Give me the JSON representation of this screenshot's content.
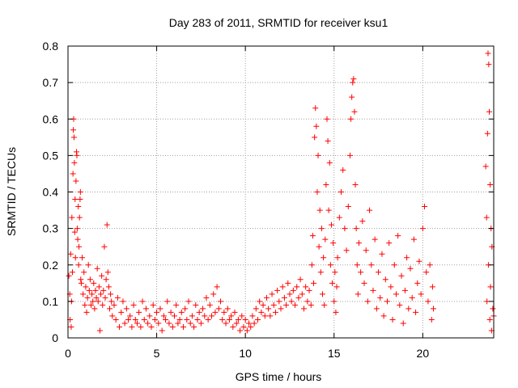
{
  "chart_data": {
    "type": "scatter",
    "title": "Day 283 of 2011, SRMTID for receiver ksu1",
    "xlabel": "GPS time / hours",
    "ylabel": "SRMTID / TECUs",
    "xlim": [
      0,
      24
    ],
    "ylim": [
      0,
      0.8
    ],
    "xticks": [
      0,
      5,
      10,
      15,
      20
    ],
    "yticks": [
      0,
      0.1,
      0.2,
      0.3,
      0.4,
      0.5,
      0.6,
      0.7,
      0.8
    ],
    "grid": true,
    "marker": "plus",
    "color": "#ff0000",
    "series": [
      {
        "name": "SRMTID",
        "points": [
          [
            0.05,
            0.17
          ],
          [
            0.1,
            0.12
          ],
          [
            0.12,
            0.05
          ],
          [
            0.15,
            0.23
          ],
          [
            0.18,
            0.03
          ],
          [
            0.2,
            0.1
          ],
          [
            0.22,
            0.33
          ],
          [
            0.25,
            0.18
          ],
          [
            0.28,
            0.45
          ],
          [
            0.3,
            0.57
          ],
          [
            0.32,
            0.6
          ],
          [
            0.34,
            0.55
          ],
          [
            0.36,
            0.48
          ],
          [
            0.38,
            0.29
          ],
          [
            0.4,
            0.38
          ],
          [
            0.42,
            0.22
          ],
          [
            0.45,
            0.43
          ],
          [
            0.48,
            0.51
          ],
          [
            0.5,
            0.5
          ],
          [
            0.52,
            0.3
          ],
          [
            0.55,
            0.27
          ],
          [
            0.58,
            0.36
          ],
          [
            0.6,
            0.2
          ],
          [
            0.62,
            0.25
          ],
          [
            0.65,
            0.33
          ],
          [
            0.68,
            0.38
          ],
          [
            0.7,
            0.4
          ],
          [
            0.72,
            0.16
          ],
          [
            0.75,
            0.15
          ],
          [
            0.8,
            0.22
          ],
          [
            0.85,
            0.12
          ],
          [
            0.9,
            0.18
          ],
          [
            0.95,
            0.09
          ],
          [
            1.0,
            0.14
          ],
          [
            1.05,
            0.07
          ],
          [
            1.1,
            0.11
          ],
          [
            1.15,
            0.2
          ],
          [
            1.2,
            0.13
          ],
          [
            1.25,
            0.16
          ],
          [
            1.3,
            0.09
          ],
          [
            1.35,
            0.12
          ],
          [
            1.4,
            0.1
          ],
          [
            1.45,
            0.15
          ],
          [
            1.5,
            0.08
          ],
          [
            1.55,
            0.13
          ],
          [
            1.6,
            0.11
          ],
          [
            1.65,
            0.19
          ],
          [
            1.7,
            0.1
          ],
          [
            1.75,
            0.14
          ],
          [
            1.8,
            0.02
          ],
          [
            1.85,
            0.12
          ],
          [
            1.9,
            0.17
          ],
          [
            1.95,
            0.09
          ],
          [
            2.0,
            0.13
          ],
          [
            2.05,
            0.25
          ],
          [
            2.1,
            0.11
          ],
          [
            2.15,
            0.16
          ],
          [
            2.2,
            0.31
          ],
          [
            2.25,
            0.18
          ],
          [
            2.3,
            0.14
          ],
          [
            2.35,
            0.08
          ],
          [
            2.4,
            0.12
          ],
          [
            2.45,
            0.1
          ],
          [
            2.5,
            0.06
          ],
          [
            2.6,
            0.09
          ],
          [
            2.7,
            0.05
          ],
          [
            2.8,
            0.11
          ],
          [
            2.9,
            0.03
          ],
          [
            3.0,
            0.07
          ],
          [
            3.1,
            0.1
          ],
          [
            3.2,
            0.04
          ],
          [
            3.3,
            0.08
          ],
          [
            3.4,
            0.05
          ],
          [
            3.5,
            0.06
          ],
          [
            3.6,
            0.03
          ],
          [
            3.7,
            0.09
          ],
          [
            3.8,
            0.05
          ],
          [
            3.9,
            0.04
          ],
          [
            4.0,
            0.07
          ],
          [
            4.1,
            0.03
          ],
          [
            4.2,
            0.1
          ],
          [
            4.3,
            0.05
          ],
          [
            4.4,
            0.08
          ],
          [
            4.5,
            0.04
          ],
          [
            4.6,
            0.06
          ],
          [
            4.7,
            0.03
          ],
          [
            4.8,
            0.09
          ],
          [
            4.9,
            0.05
          ],
          [
            5.0,
            0.07
          ],
          [
            5.1,
            0.04
          ],
          [
            5.2,
            0.08
          ],
          [
            5.3,
            0.02
          ],
          [
            5.4,
            0.06
          ],
          [
            5.5,
            0.05
          ],
          [
            5.6,
            0.1
          ],
          [
            5.7,
            0.04
          ],
          [
            5.8,
            0.07
          ],
          [
            5.9,
            0.03
          ],
          [
            6.0,
            0.06
          ],
          [
            6.1,
            0.09
          ],
          [
            6.2,
            0.04
          ],
          [
            6.3,
            0.05
          ],
          [
            6.4,
            0.07
          ],
          [
            6.5,
            0.03
          ],
          [
            6.6,
            0.08
          ],
          [
            6.7,
            0.05
          ],
          [
            6.8,
            0.1
          ],
          [
            6.9,
            0.04
          ],
          [
            7.0,
            0.06
          ],
          [
            7.1,
            0.03
          ],
          [
            7.2,
            0.09
          ],
          [
            7.3,
            0.05
          ],
          [
            7.4,
            0.07
          ],
          [
            7.5,
            0.04
          ],
          [
            7.6,
            0.08
          ],
          [
            7.7,
            0.06
          ],
          [
            7.8,
            0.11
          ],
          [
            7.9,
            0.05
          ],
          [
            8.0,
            0.09
          ],
          [
            8.1,
            0.06
          ],
          [
            8.2,
            0.12
          ],
          [
            8.3,
            0.07
          ],
          [
            8.4,
            0.14
          ],
          [
            8.5,
            0.08
          ],
          [
            8.6,
            0.1
          ],
          [
            8.7,
            0.05
          ],
          [
            8.8,
            0.07
          ],
          [
            8.9,
            0.04
          ],
          [
            9.0,
            0.08
          ],
          [
            9.1,
            0.05
          ],
          [
            9.2,
            0.06
          ],
          [
            9.3,
            0.03
          ],
          [
            9.4,
            0.07
          ],
          [
            9.5,
            0.04
          ],
          [
            9.6,
            0.05
          ],
          [
            9.7,
            0.02
          ],
          [
            9.8,
            0.06
          ],
          [
            9.9,
            0.03
          ],
          [
            10.0,
            0.05
          ],
          [
            10.1,
            0.02
          ],
          [
            10.2,
            0.04
          ],
          [
            10.3,
            0.03
          ],
          [
            10.4,
            0.06
          ],
          [
            10.5,
            0.04
          ],
          [
            10.6,
            0.08
          ],
          [
            10.7,
            0.05
          ],
          [
            10.8,
            0.1
          ],
          [
            10.9,
            0.07
          ],
          [
            11.0,
            0.09
          ],
          [
            11.1,
            0.06
          ],
          [
            11.2,
            0.11
          ],
          [
            11.3,
            0.08
          ],
          [
            11.4,
            0.06
          ],
          [
            11.5,
            0.12
          ],
          [
            11.6,
            0.09
          ],
          [
            11.7,
            0.07
          ],
          [
            11.8,
            0.13
          ],
          [
            11.9,
            0.1
          ],
          [
            12.0,
            0.08
          ],
          [
            12.1,
            0.14
          ],
          [
            12.2,
            0.11
          ],
          [
            12.3,
            0.09
          ],
          [
            12.4,
            0.15
          ],
          [
            12.5,
            0.12
          ],
          [
            12.6,
            0.1
          ],
          [
            12.7,
            0.13
          ],
          [
            12.8,
            0.09
          ],
          [
            12.9,
            0.14
          ],
          [
            13.0,
            0.11
          ],
          [
            13.1,
            0.16
          ],
          [
            13.2,
            0.12
          ],
          [
            13.3,
            0.08
          ],
          [
            13.4,
            0.14
          ],
          [
            13.5,
            0.1
          ],
          [
            13.6,
            0.13
          ],
          [
            13.7,
            0.09
          ],
          [
            13.75,
            0.2
          ],
          [
            13.8,
            0.28
          ],
          [
            13.85,
            0.15
          ],
          [
            13.9,
            0.55
          ],
          [
            13.95,
            0.63
          ],
          [
            14.0,
            0.58
          ],
          [
            14.05,
            0.4
          ],
          [
            14.1,
            0.5
          ],
          [
            14.15,
            0.25
          ],
          [
            14.2,
            0.35
          ],
          [
            14.25,
            0.18
          ],
          [
            14.3,
            0.3
          ],
          [
            14.35,
            0.12
          ],
          [
            14.4,
            0.22
          ],
          [
            14.45,
            0.09
          ],
          [
            14.5,
            0.27
          ],
          [
            14.55,
            0.42
          ],
          [
            14.6,
            0.6
          ],
          [
            14.65,
            0.54
          ],
          [
            14.7,
            0.35
          ],
          [
            14.75,
            0.48
          ],
          [
            14.8,
            0.2
          ],
          [
            14.85,
            0.31
          ],
          [
            14.9,
            0.15
          ],
          [
            14.95,
            0.26
          ],
          [
            15.0,
            0.1
          ],
          [
            15.05,
            0.18
          ],
          [
            15.1,
            0.07
          ],
          [
            15.15,
            0.14
          ],
          [
            15.2,
            0.22
          ],
          [
            15.3,
            0.33
          ],
          [
            15.4,
            0.4
          ],
          [
            15.5,
            0.46
          ],
          [
            15.6,
            0.3
          ],
          [
            15.7,
            0.24
          ],
          [
            15.8,
            0.36
          ],
          [
            15.9,
            0.5
          ],
          [
            15.95,
            0.6
          ],
          [
            16.0,
            0.66
          ],
          [
            16.05,
            0.7
          ],
          [
            16.1,
            0.71
          ],
          [
            16.15,
            0.62
          ],
          [
            16.2,
            0.42
          ],
          [
            16.25,
            0.3
          ],
          [
            16.3,
            0.2
          ],
          [
            16.35,
            0.12
          ],
          [
            16.4,
            0.26
          ],
          [
            16.5,
            0.18
          ],
          [
            16.6,
            0.32
          ],
          [
            16.7,
            0.15
          ],
          [
            16.8,
            0.24
          ],
          [
            16.9,
            0.1
          ],
          [
            17.0,
            0.35
          ],
          [
            17.1,
            0.2
          ],
          [
            17.2,
            0.13
          ],
          [
            17.3,
            0.27
          ],
          [
            17.4,
            0.08
          ],
          [
            17.5,
            0.18
          ],
          [
            17.6,
            0.11
          ],
          [
            17.7,
            0.23
          ],
          [
            17.8,
            0.06
          ],
          [
            17.9,
            0.16
          ],
          [
            18.0,
            0.1
          ],
          [
            18.1,
            0.26
          ],
          [
            18.2,
            0.14
          ],
          [
            18.3,
            0.05
          ],
          [
            18.4,
            0.2
          ],
          [
            18.5,
            0.12
          ],
          [
            18.6,
            0.28
          ],
          [
            18.7,
            0.09
          ],
          [
            18.8,
            0.17
          ],
          [
            18.9,
            0.04
          ],
          [
            19.0,
            0.13
          ],
          [
            19.1,
            0.22
          ],
          [
            19.2,
            0.08
          ],
          [
            19.3,
            0.19
          ],
          [
            19.4,
            0.11
          ],
          [
            19.5,
            0.27
          ],
          [
            19.6,
            0.07
          ],
          [
            19.7,
            0.15
          ],
          [
            19.8,
            0.21
          ],
          [
            19.9,
            0.12
          ],
          [
            20.0,
            0.3
          ],
          [
            20.1,
            0.36
          ],
          [
            20.2,
            0.18
          ],
          [
            20.3,
            0.1
          ],
          [
            20.4,
            0.2
          ],
          [
            20.5,
            0.05
          ],
          [
            20.55,
            0.14
          ],
          [
            20.6,
            0.08
          ],
          [
            23.55,
            0.47
          ],
          [
            23.6,
            0.33
          ],
          [
            23.62,
            0.1
          ],
          [
            23.65,
            0.56
          ],
          [
            23.68,
            0.78
          ],
          [
            23.7,
            0.2
          ],
          [
            23.72,
            0.75
          ],
          [
            23.75,
            0.62
          ],
          [
            23.78,
            0.05
          ],
          [
            23.8,
            0.42
          ],
          [
            23.82,
            0.14
          ],
          [
            23.85,
            0.3
          ],
          [
            23.88,
            0.02
          ],
          [
            23.9,
            0.25
          ],
          [
            23.95,
            0.08
          ],
          [
            24.0,
            0.06
          ]
        ]
      }
    ]
  }
}
